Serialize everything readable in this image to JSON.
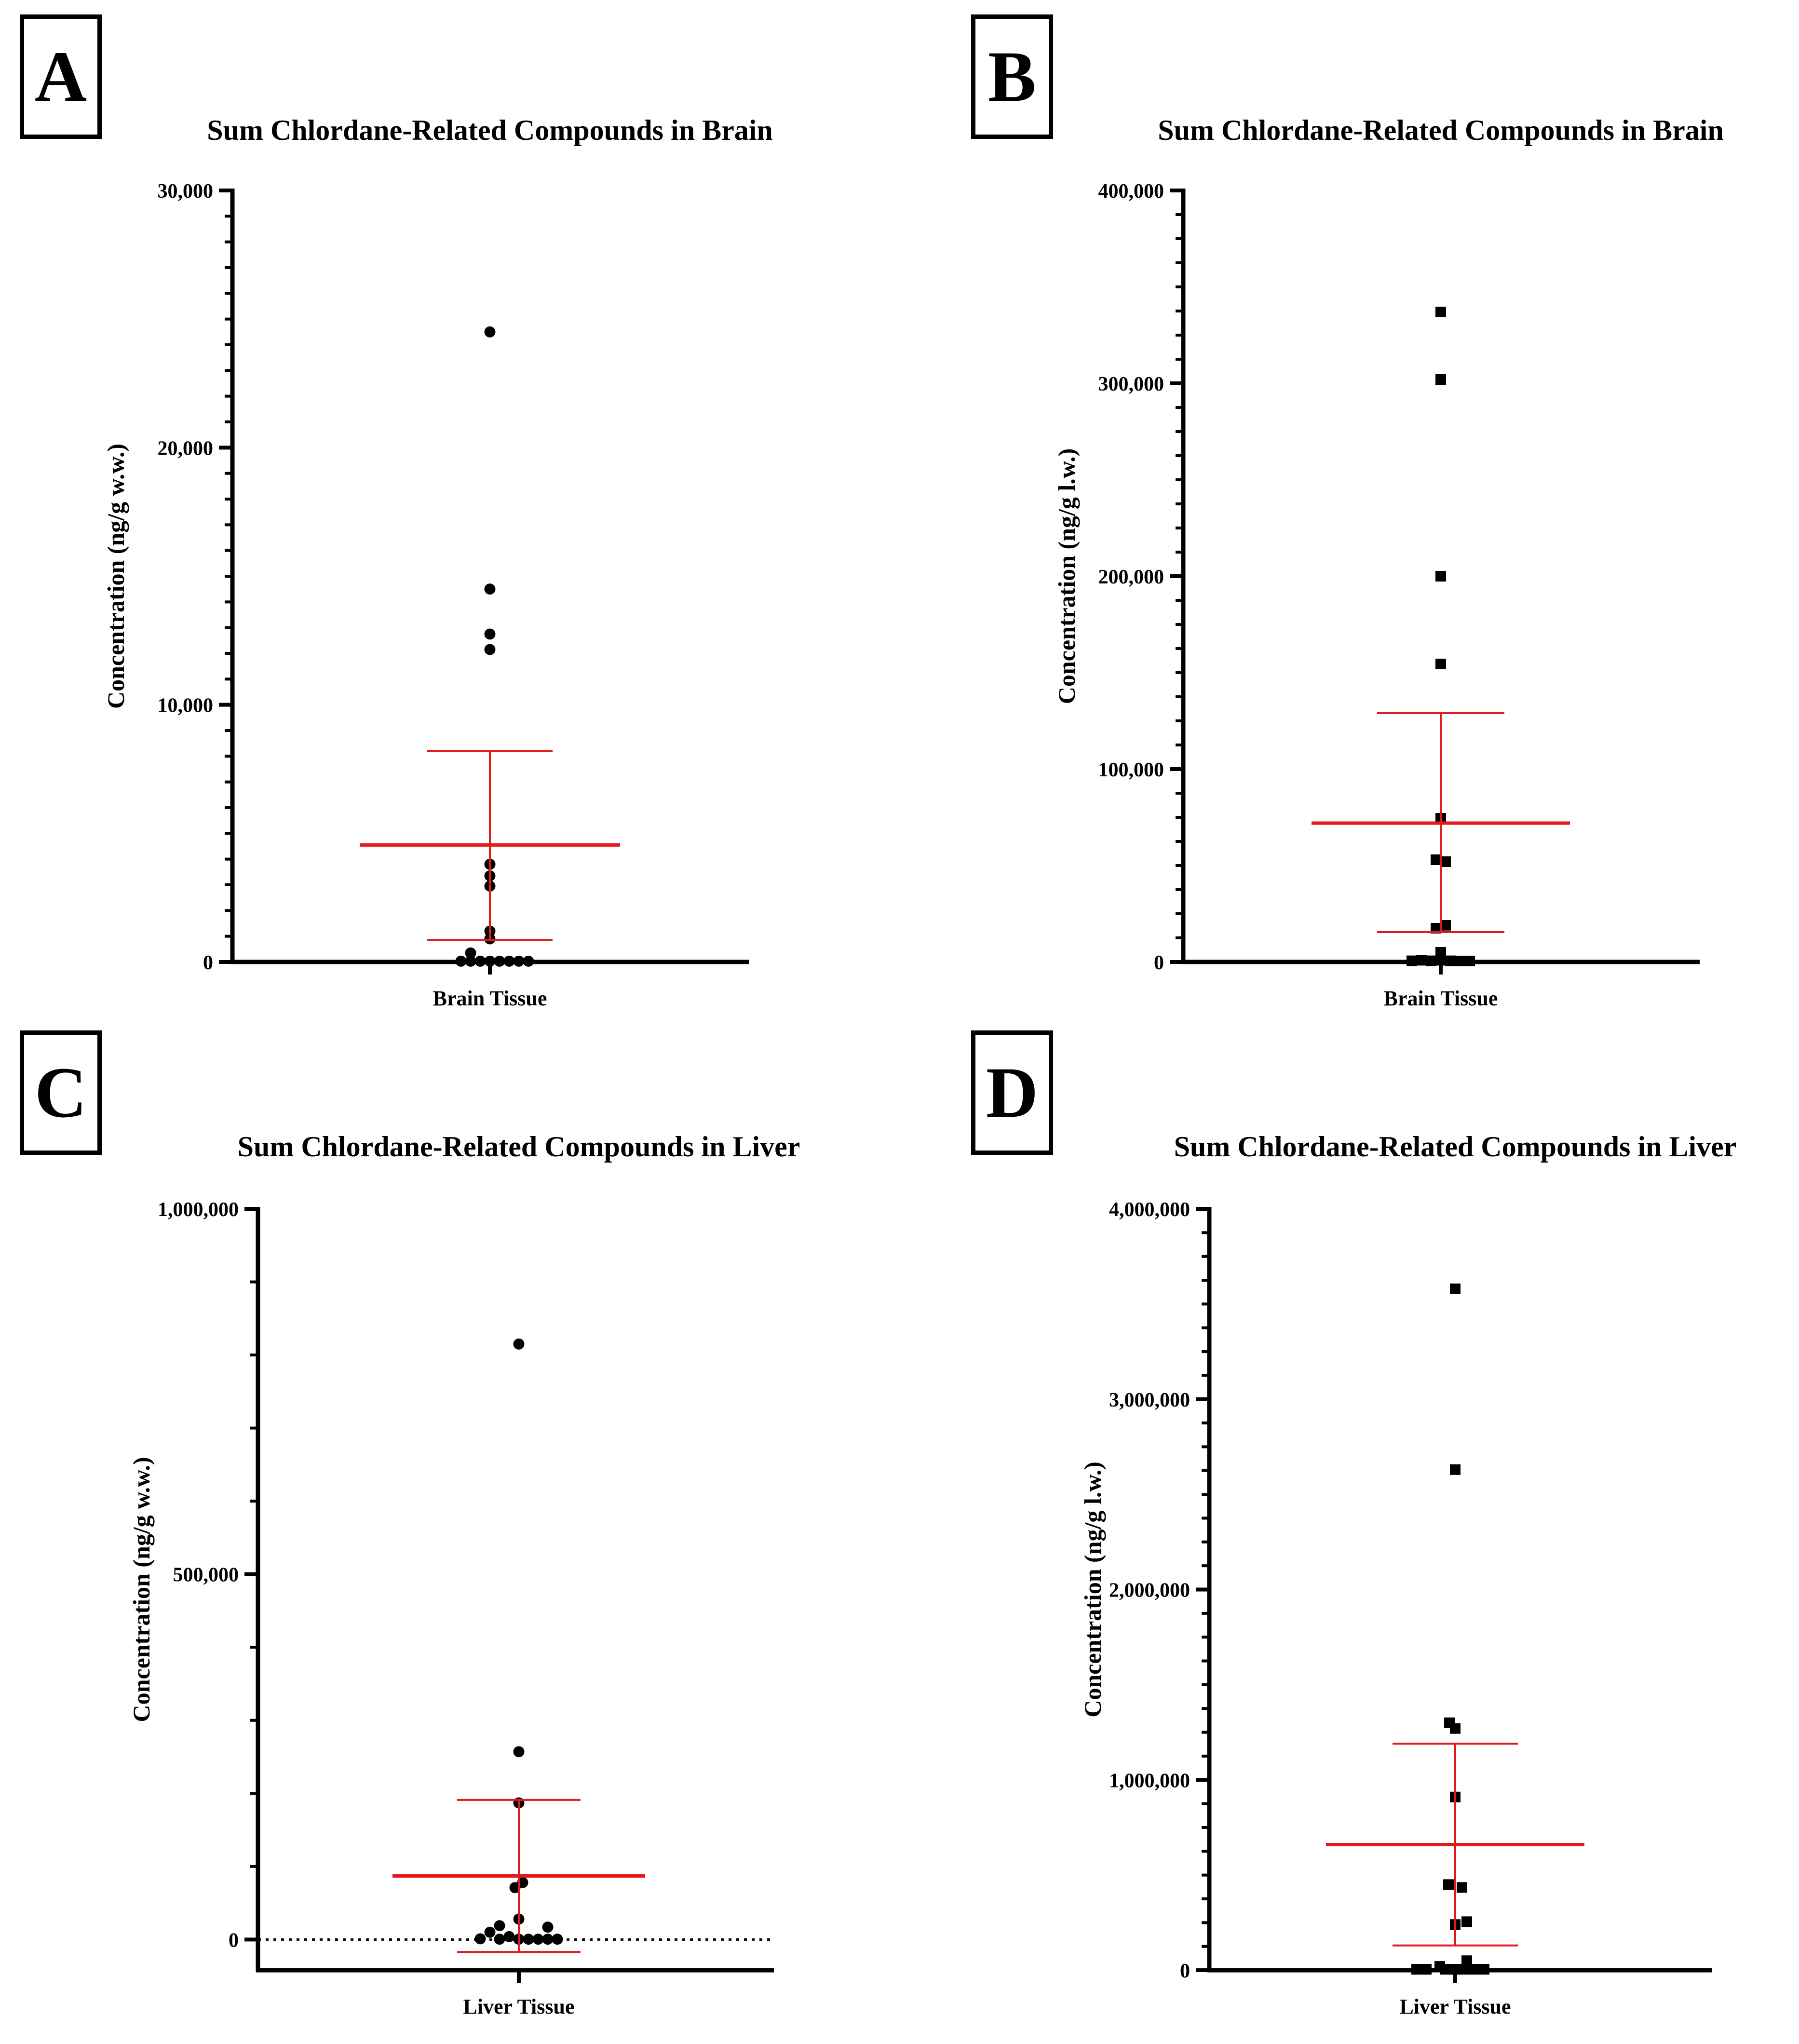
{
  "panels": {
    "a": "A",
    "b": "B",
    "c": "C",
    "d": "D"
  },
  "colors": {
    "axis": "#000000",
    "mean": "#e31a1c",
    "points": "#000000"
  },
  "chart_data": [
    {
      "id": "A",
      "type": "scatter",
      "title": "Sum Chlordane-Related Compounds in Brain",
      "ylabel": "Concentration (ng/g w.w.)",
      "category": "Brain Tissue",
      "ylim": [
        0,
        30000
      ],
      "ticks": [
        0,
        10000,
        20000,
        30000
      ],
      "tick_labels": [
        "0",
        "10,000",
        "20,000",
        "30,000"
      ],
      "minor_ticks_per_major": 10,
      "marker": "circle",
      "zero_line": false,
      "mean": 4550,
      "error_upper": 8200,
      "error_lower": 850,
      "points": [
        {
          "offset": 0,
          "value": 24500
        },
        {
          "offset": 0,
          "value": 14500
        },
        {
          "offset": 0,
          "value": 12750
        },
        {
          "offset": 0,
          "value": 12150
        },
        {
          "offset": 0,
          "value": 3800
        },
        {
          "offset": 0,
          "value": 3350
        },
        {
          "offset": 0,
          "value": 2950
        },
        {
          "offset": 0,
          "value": 1200
        },
        {
          "offset": 0,
          "value": 900
        },
        {
          "offset": -1,
          "value": 350
        },
        {
          "offset": -1.5,
          "value": 30
        },
        {
          "offset": -1,
          "value": 30
        },
        {
          "offset": -0.5,
          "value": 30
        },
        {
          "offset": 0,
          "value": 30
        },
        {
          "offset": 0.5,
          "value": 30
        },
        {
          "offset": 1,
          "value": 30
        },
        {
          "offset": 1.5,
          "value": 30
        },
        {
          "offset": 2,
          "value": 30
        }
      ]
    },
    {
      "id": "B",
      "type": "scatter",
      "title": "Sum Chlordane-Related Compounds in Brain",
      "ylabel": "Concentration (ng/g l.w.)",
      "category": "Brain Tissue",
      "ylim": [
        0,
        400000
      ],
      "ticks": [
        0,
        100000,
        200000,
        300000,
        400000
      ],
      "tick_labels": [
        "0",
        "100,000",
        "200,000",
        "300,000",
        "400,000"
      ],
      "minor_ticks_per_major": 8,
      "marker": "square",
      "zero_line": false,
      "mean": 72000,
      "error_upper": 129000,
      "error_lower": 15500,
      "points": [
        {
          "offset": 0,
          "value": 337000
        },
        {
          "offset": 0,
          "value": 302000
        },
        {
          "offset": 0,
          "value": 200000
        },
        {
          "offset": 0,
          "value": 154500
        },
        {
          "offset": 0,
          "value": 74500
        },
        {
          "offset": -0.25,
          "value": 53000
        },
        {
          "offset": 0.25,
          "value": 52000
        },
        {
          "offset": 0.25,
          "value": 19000
        },
        {
          "offset": -0.25,
          "value": 17500
        },
        {
          "offset": 0,
          "value": 5000
        },
        {
          "offset": -1.5,
          "value": 600
        },
        {
          "offset": -1,
          "value": 900
        },
        {
          "offset": -0.5,
          "value": 600
        },
        {
          "offset": 0,
          "value": 900
        },
        {
          "offset": 0.5,
          "value": 600
        },
        {
          "offset": 1,
          "value": 500
        },
        {
          "offset": 1.5,
          "value": 500
        }
      ]
    },
    {
      "id": "C",
      "type": "scatter",
      "title": "Sum Chlordane-Related Compounds in Liver",
      "ylabel": "Concentration (ng/g w.w.)",
      "category": "Liver Tissue",
      "ylim": [
        -42000,
        1000000
      ],
      "ticks": [
        0,
        500000,
        1000000
      ],
      "tick_labels": [
        "0",
        "500,000",
        "1,000,000"
      ],
      "minor_ticks_per_major": 5,
      "marker": "circle",
      "zero_line": true,
      "mean": 87000,
      "error_upper": 191000,
      "error_lower": -17000,
      "points": [
        {
          "offset": 0,
          "value": 815000
        },
        {
          "offset": 0,
          "value": 257000
        },
        {
          "offset": 0,
          "value": 187000
        },
        {
          "offset": 0.2,
          "value": 78000
        },
        {
          "offset": -0.2,
          "value": 71000
        },
        {
          "offset": 0,
          "value": 28000
        },
        {
          "offset": -1,
          "value": 19000
        },
        {
          "offset": 1.5,
          "value": 17000
        },
        {
          "offset": -1.5,
          "value": 10000
        },
        {
          "offset": -0.5,
          "value": 4000
        },
        {
          "offset": -2,
          "value": 1000
        },
        {
          "offset": -1,
          "value": 500
        },
        {
          "offset": 0,
          "value": 500
        },
        {
          "offset": 0.5,
          "value": 500
        },
        {
          "offset": 1,
          "value": 500
        },
        {
          "offset": 1.5,
          "value": 500
        },
        {
          "offset": 2,
          "value": 500
        }
      ]
    },
    {
      "id": "D",
      "type": "scatter",
      "title": "Sum Chlordane-Related Compounds in Liver",
      "ylabel": "Concentration (ng/g l.w.)",
      "category": "Liver Tissue",
      "ylim": [
        0,
        4000000
      ],
      "ticks": [
        0,
        1000000,
        2000000,
        3000000,
        4000000
      ],
      "tick_labels": [
        "0",
        "1,000,000",
        "2,000,000",
        "3,000,000",
        "4,000,000"
      ],
      "minor_ticks_per_major": 8,
      "marker": "square",
      "zero_line": false,
      "mean": 660000,
      "error_upper": 1190000,
      "error_lower": 130000,
      "points": [
        {
          "offset": 0,
          "value": 3580000
        },
        {
          "offset": 0,
          "value": 2630000
        },
        {
          "offset": -0.3,
          "value": 1300000
        },
        {
          "offset": 0,
          "value": 1270000
        },
        {
          "offset": 0,
          "value": 910000
        },
        {
          "offset": -0.35,
          "value": 450000
        },
        {
          "offset": 0.35,
          "value": 435000
        },
        {
          "offset": 0.6,
          "value": 255000
        },
        {
          "offset": 0,
          "value": 240000
        },
        {
          "offset": 0.6,
          "value": 50000
        },
        {
          "offset": -0.8,
          "value": 20000
        },
        {
          "offset": -2,
          "value": 5000
        },
        {
          "offset": -1.5,
          "value": 5000
        },
        {
          "offset": -0.5,
          "value": 5000
        },
        {
          "offset": 0,
          "value": 5000
        },
        {
          "offset": 0.5,
          "value": 5000
        },
        {
          "offset": 1,
          "value": 5000
        },
        {
          "offset": 1.5,
          "value": 5000
        }
      ]
    }
  ]
}
